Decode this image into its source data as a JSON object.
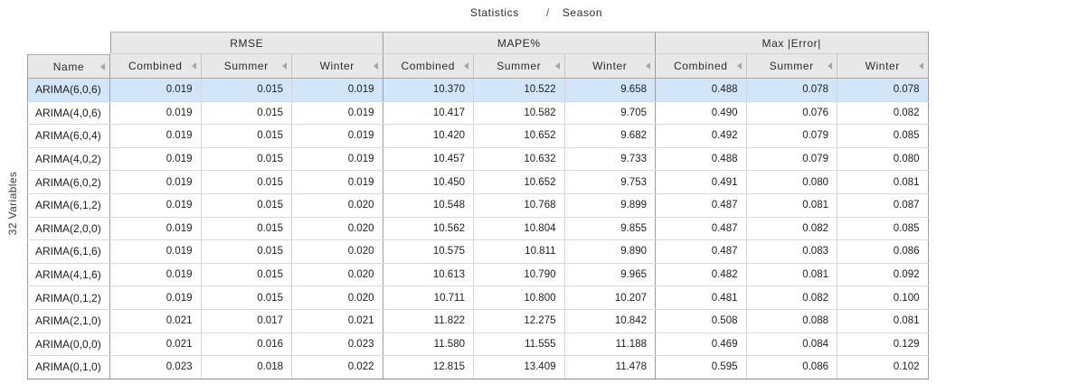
{
  "pivot_header": {
    "dimension": "Statistics",
    "separator": "/",
    "breakdown": "Season"
  },
  "row_axis_label": "32 Variables",
  "table": {
    "name_header": "Name",
    "groups": [
      {
        "label": "RMSE",
        "columns": [
          "Combined",
          "Summer",
          "Winter"
        ]
      },
      {
        "label": "MAPE%",
        "columns": [
          "Combined",
          "Summer",
          "Winter"
        ]
      },
      {
        "label": "Max |Error|",
        "columns": [
          "Combined",
          "Summer",
          "Winter"
        ]
      }
    ],
    "rows": [
      {
        "name": "ARIMA(6,0,6)",
        "selected": true,
        "values": [
          "0.019",
          "0.015",
          "0.019",
          "10.370",
          "10.522",
          "9.658",
          "0.488",
          "0.078",
          "0.078"
        ]
      },
      {
        "name": "ARIMA(4,0,6)",
        "selected": false,
        "values": [
          "0.019",
          "0.015",
          "0.019",
          "10.417",
          "10.582",
          "9.705",
          "0.490",
          "0.076",
          "0.082"
        ]
      },
      {
        "name": "ARIMA(6,0,4)",
        "selected": false,
        "values": [
          "0.019",
          "0.015",
          "0.019",
          "10.420",
          "10.652",
          "9.682",
          "0.492",
          "0.079",
          "0.085"
        ]
      },
      {
        "name": "ARIMA(4,0,2)",
        "selected": false,
        "values": [
          "0.019",
          "0.015",
          "0.019",
          "10.457",
          "10.632",
          "9.733",
          "0.488",
          "0.079",
          "0.080"
        ]
      },
      {
        "name": "ARIMA(6,0,2)",
        "selected": false,
        "values": [
          "0.019",
          "0.015",
          "0.019",
          "10.450",
          "10.652",
          "9.753",
          "0.491",
          "0.080",
          "0.081"
        ]
      },
      {
        "name": "ARIMA(6,1,2)",
        "selected": false,
        "values": [
          "0.019",
          "0.015",
          "0.020",
          "10.548",
          "10.768",
          "9.899",
          "0.487",
          "0.081",
          "0.087"
        ]
      },
      {
        "name": "ARIMA(2,0,0)",
        "selected": false,
        "values": [
          "0.019",
          "0.015",
          "0.020",
          "10.562",
          "10.804",
          "9.855",
          "0.487",
          "0.082",
          "0.085"
        ]
      },
      {
        "name": "ARIMA(6,1,6)",
        "selected": false,
        "values": [
          "0.019",
          "0.015",
          "0.020",
          "10.575",
          "10.811",
          "9.890",
          "0.487",
          "0.083",
          "0.086"
        ]
      },
      {
        "name": "ARIMA(4,1,6)",
        "selected": false,
        "values": [
          "0.019",
          "0.015",
          "0.020",
          "10.613",
          "10.790",
          "9.965",
          "0.482",
          "0.081",
          "0.092"
        ]
      },
      {
        "name": "ARIMA(0,1,2)",
        "selected": false,
        "values": [
          "0.019",
          "0.015",
          "0.020",
          "10.711",
          "10.800",
          "10.207",
          "0.481",
          "0.082",
          "0.100"
        ]
      },
      {
        "name": "ARIMA(2,1,0)",
        "selected": false,
        "values": [
          "0.021",
          "0.017",
          "0.021",
          "11.822",
          "12.275",
          "10.842",
          "0.508",
          "0.088",
          "0.081"
        ]
      },
      {
        "name": "ARIMA(0,0,0)",
        "selected": false,
        "values": [
          "0.021",
          "0.016",
          "0.023",
          "11.580",
          "11.555",
          "11.188",
          "0.469",
          "0.084",
          "0.129"
        ]
      },
      {
        "name": "ARIMA(0,1,0)",
        "selected": false,
        "values": [
          "0.023",
          "0.018",
          "0.022",
          "12.815",
          "13.409",
          "11.478",
          "0.595",
          "0.086",
          "0.102"
        ]
      }
    ]
  },
  "colors": {
    "selected_row": "#d3e5f8",
    "header_bg": "#e8e8e8",
    "grid_border": "#9e9e9e",
    "row_border": "#d9d9d9"
  }
}
